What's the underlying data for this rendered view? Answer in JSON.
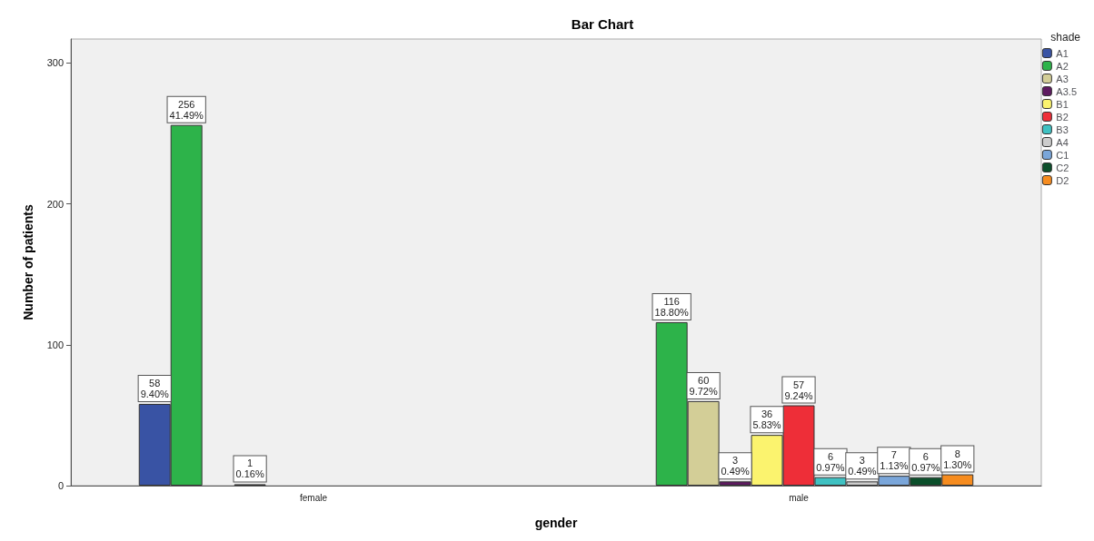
{
  "chart_data": {
    "type": "bar",
    "title": "Bar Chart",
    "xlabel": "gender",
    "ylabel": "Number of patients",
    "legend_title": "shade",
    "categories": [
      "female",
      "male"
    ],
    "series": [
      {
        "name": "A1",
        "color": "#3953a4",
        "values": [
          58,
          null
        ],
        "value_labels": [
          "58\n9.40%",
          null
        ]
      },
      {
        "name": "A2",
        "color": "#2db34a",
        "values": [
          256,
          116
        ],
        "value_labels": [
          "256\n41.49%",
          "116\n18.80%"
        ]
      },
      {
        "name": "A3",
        "color": "#d3ce97",
        "values": [
          null,
          60
        ],
        "value_labels": [
          null,
          "60\n9.72%"
        ]
      },
      {
        "name": "A3.5",
        "color": "#5e1a60",
        "values": [
          1,
          3
        ],
        "value_labels": [
          "1\n0.16%",
          "3\n0.49%"
        ]
      },
      {
        "name": "B1",
        "color": "#fbf36e",
        "values": [
          null,
          36
        ],
        "value_labels": [
          null,
          "36\n5.83%"
        ]
      },
      {
        "name": "B2",
        "color": "#ee2e38",
        "values": [
          null,
          57
        ],
        "value_labels": [
          null,
          "57\n9.24%"
        ]
      },
      {
        "name": "B3",
        "color": "#3fc1c2",
        "values": [
          null,
          6
        ],
        "value_labels": [
          null,
          "6\n0.97%"
        ]
      },
      {
        "name": "A4",
        "color": "#cccccc",
        "values": [
          null,
          3
        ],
        "value_labels": [
          null,
          "3\n0.49%"
        ]
      },
      {
        "name": "C1",
        "color": "#7aa6da",
        "values": [
          null,
          7
        ],
        "value_labels": [
          null,
          "7\n1.13%"
        ]
      },
      {
        "name": "C2",
        "color": "#0b4f2b",
        "values": [
          null,
          6
        ],
        "value_labels": [
          null,
          "6\n0.97%"
        ]
      },
      {
        "name": "D2",
        "color": "#f68c1f",
        "values": [
          null,
          8
        ],
        "value_labels": [
          null,
          "8\n1.30%"
        ]
      }
    ],
    "ylim": [
      0,
      317
    ],
    "yticks": [
      0,
      100,
      200,
      300
    ],
    "grid": false,
    "legend": "right"
  }
}
